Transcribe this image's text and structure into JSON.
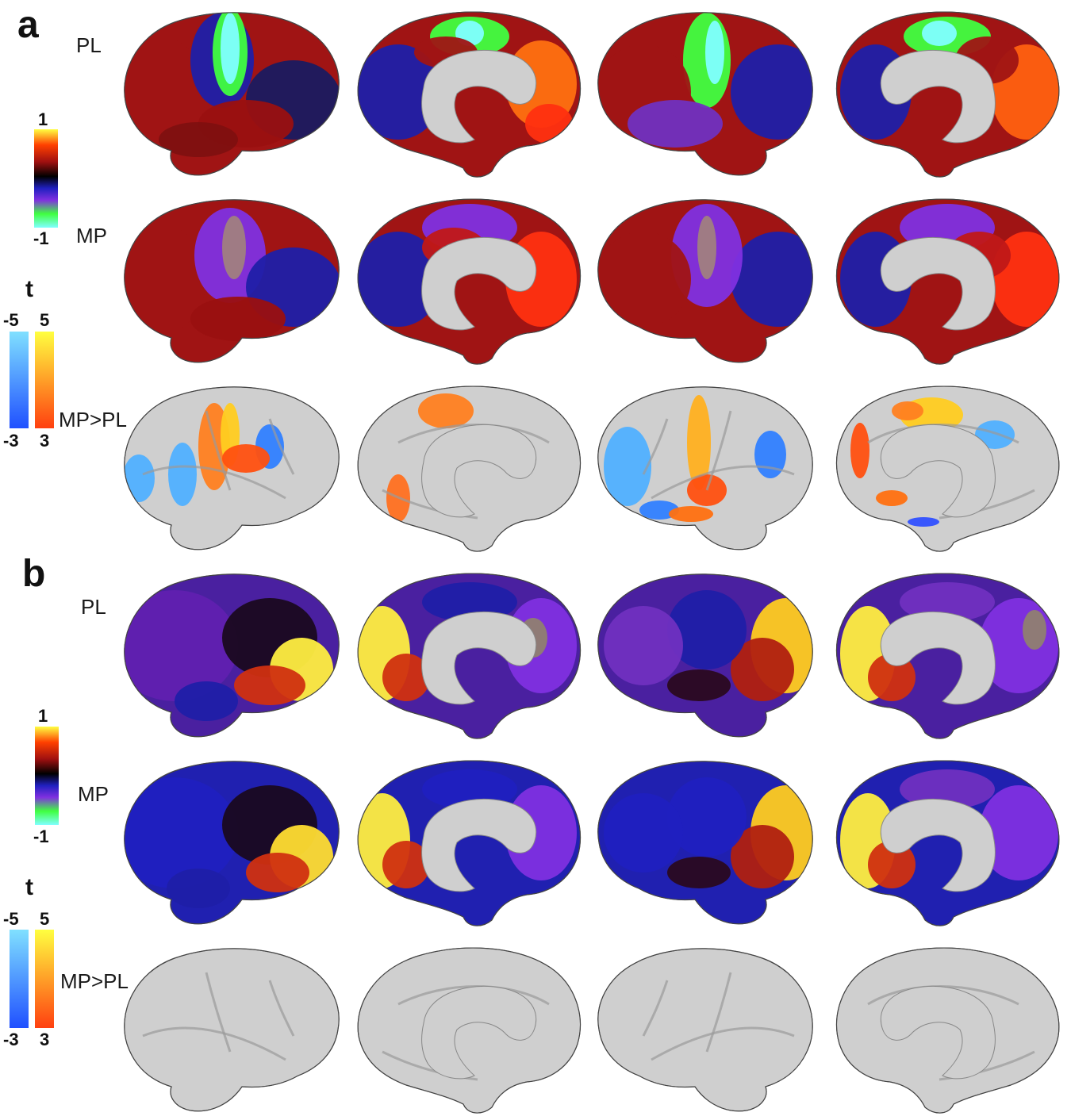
{
  "panels": [
    {
      "letter": "a",
      "rows": [
        {
          "label": "PL",
          "kind": "corr"
        },
        {
          "label": "MP",
          "kind": "corr"
        },
        {
          "label": "MP>PL",
          "kind": "tmap"
        }
      ],
      "corr_colorbar": {
        "max": "1",
        "min": "-1"
      },
      "t_colorbar": {
        "title": "t",
        "neg_top": "-5",
        "neg_bottom": "-3",
        "pos_top": "5",
        "pos_bottom": "3"
      }
    },
    {
      "letter": "b",
      "rows": [
        {
          "label": "PL",
          "kind": "corr"
        },
        {
          "label": "MP",
          "kind": "corr"
        },
        {
          "label": "MP>PL",
          "kind": "tmap"
        }
      ],
      "corr_colorbar": {
        "max": "1",
        "min": "-1"
      },
      "t_colorbar": {
        "title": "t",
        "neg_top": "-5",
        "neg_bottom": "-3",
        "pos_top": "5",
        "pos_bottom": "3"
      }
    }
  ],
  "views": [
    "left-lateral",
    "left-medial",
    "right-lateral",
    "right-medial"
  ],
  "colors": {
    "corr_scale": [
      "#ffff40",
      "#ff4000",
      "#b01010",
      "#000000",
      "#2020c0",
      "#8030e0",
      "#40ff40",
      "#80ffff"
    ],
    "t_negative": [
      "#80e0ff",
      "#2050ff"
    ],
    "t_positive": [
      "#ffff40",
      "#ff4010"
    ],
    "cortex_gray": "#cfcfcf"
  }
}
